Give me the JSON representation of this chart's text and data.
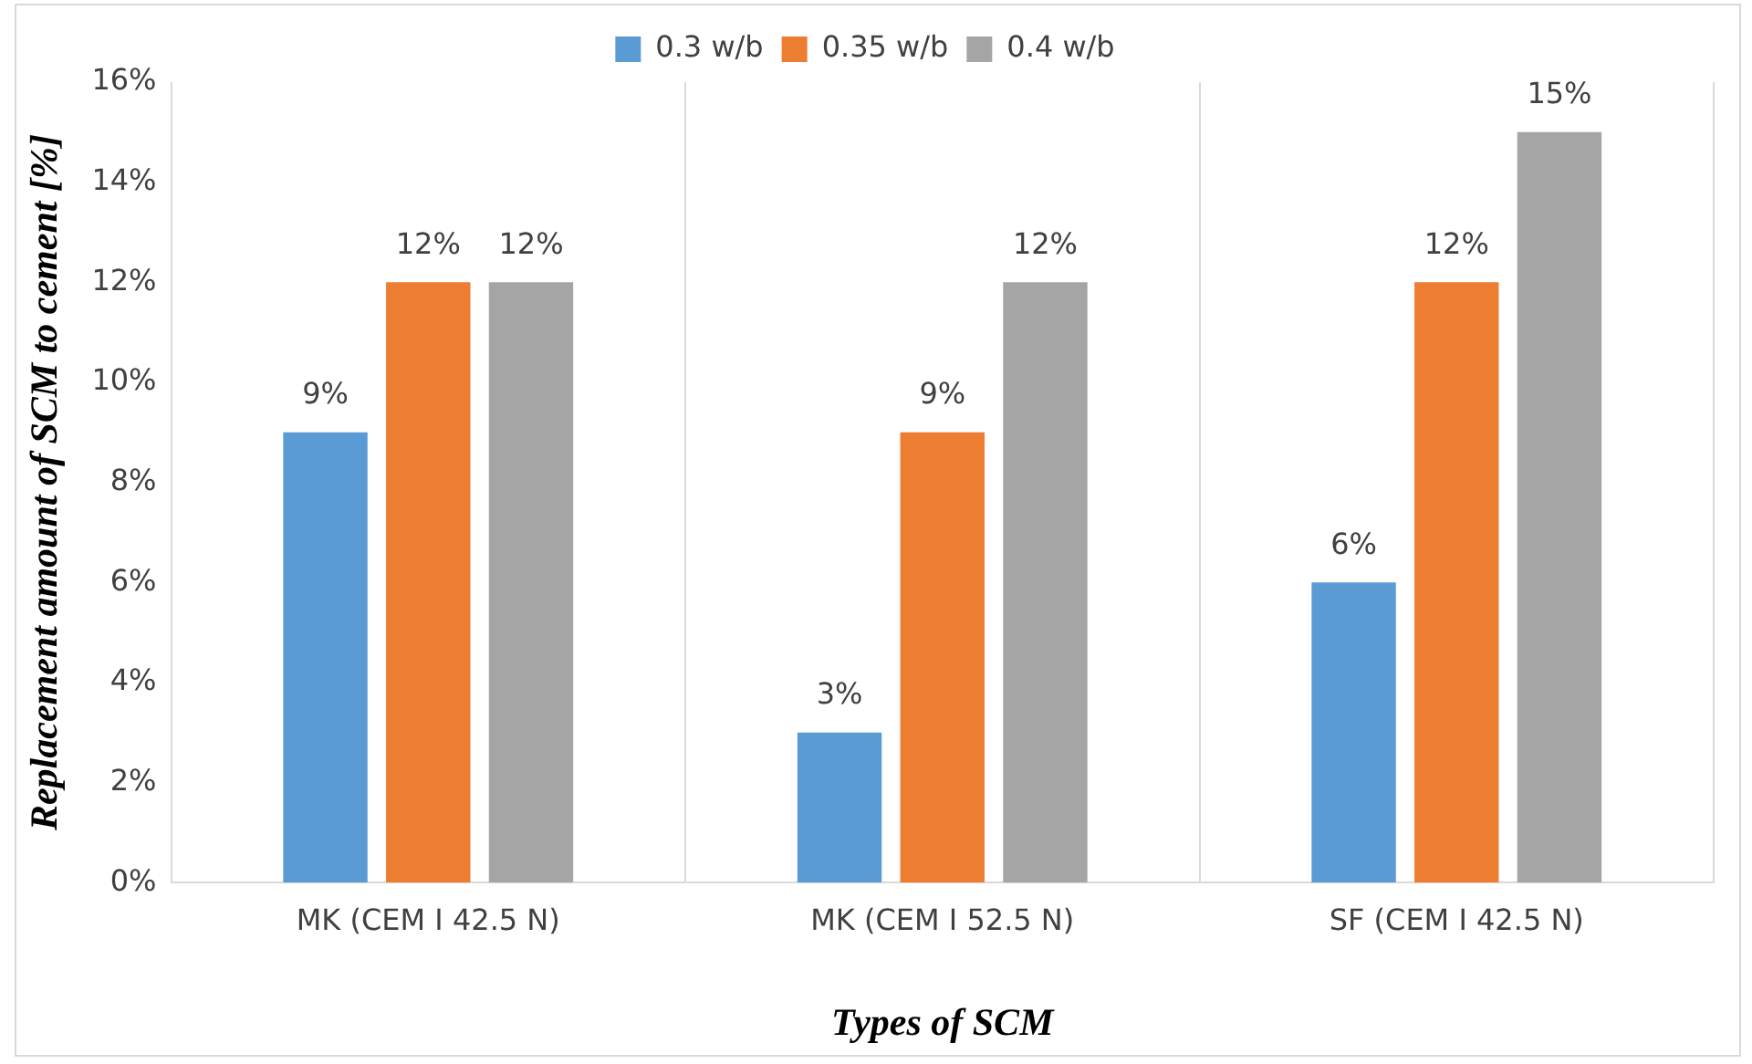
{
  "chart_data": {
    "type": "bar",
    "xlabel": "Types of SCM",
    "ylabel": "Replacement amount of SCM to cement [%]",
    "categories": [
      "MK (CEM I 42.5 N)",
      "MK (CEM I 52.5 N)",
      "SF (CEM I 42.5 N)"
    ],
    "series": [
      {
        "name": "0.3 w/b",
        "color": "#5b9bd5",
        "values": [
          9,
          3,
          6
        ],
        "value_labels": [
          "9%",
          "3%",
          "6%"
        ]
      },
      {
        "name": "0.35 w/b",
        "color": "#ed7d31",
        "values": [
          12,
          9,
          12
        ],
        "value_labels": [
          "12%",
          "9%",
          "12%"
        ]
      },
      {
        "name": "0.4 w/b",
        "color": "#a5a5a5",
        "values": [
          12,
          12,
          15
        ],
        "value_labels": [
          "12%",
          "12%",
          "15%"
        ]
      }
    ],
    "ylim": [
      0,
      16
    ],
    "yticks": [
      {
        "value": 0,
        "label": "0%"
      },
      {
        "value": 2,
        "label": "2%"
      },
      {
        "value": 4,
        "label": "4%"
      },
      {
        "value": 6,
        "label": "6%"
      },
      {
        "value": 8,
        "label": "8%"
      },
      {
        "value": 10,
        "label": "10%"
      },
      {
        "value": 12,
        "label": "12%"
      },
      {
        "value": 14,
        "label": "14%"
      },
      {
        "value": 16,
        "label": "16%"
      }
    ],
    "grid": "x",
    "legend": "top"
  }
}
